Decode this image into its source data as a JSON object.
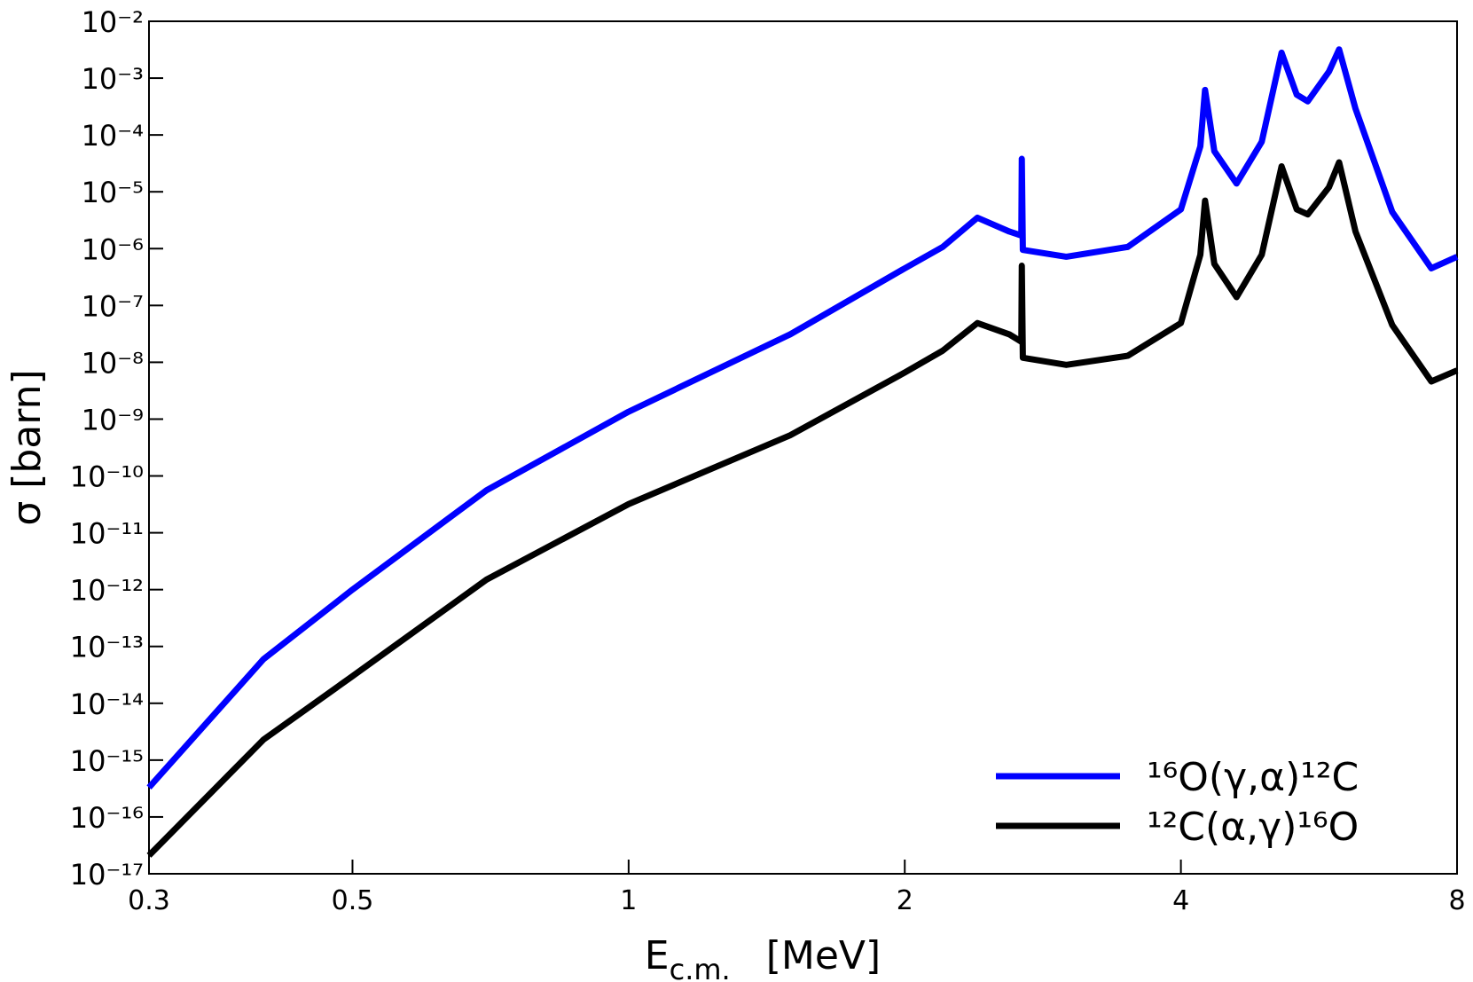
{
  "chart_data": {
    "type": "line",
    "xlabel": [
      "E",
      "c.m.",
      "[MeV]"
    ],
    "ylabel": "σ  [barn]",
    "xscale": "log",
    "yscale": "log",
    "xlim": [
      0.3,
      8
    ],
    "ylim": [
      1e-17,
      0.01
    ],
    "xticks": [
      0.3,
      0.5,
      1,
      2,
      4,
      8
    ],
    "yticks": [
      {
        "value": 1e-17,
        "label": "10⁻¹⁷"
      },
      {
        "value": 1e-16,
        "label": "10⁻¹⁶"
      },
      {
        "value": 1e-15,
        "label": "10⁻¹⁵"
      },
      {
        "value": 1e-14,
        "label": "10⁻¹⁴"
      },
      {
        "value": 1e-13,
        "label": "10⁻¹³"
      },
      {
        "value": 1e-12,
        "label": "10⁻¹²"
      },
      {
        "value": 1e-11,
        "label": "10⁻¹¹"
      },
      {
        "value": 1e-10,
        "label": "10⁻¹⁰"
      },
      {
        "value": 1e-09,
        "label": "10⁻⁹"
      },
      {
        "value": 1e-08,
        "label": "10⁻⁸"
      },
      {
        "value": 1e-07,
        "label": "10⁻⁷"
      },
      {
        "value": 1e-06,
        "label": "10⁻⁶"
      },
      {
        "value": 1e-05,
        "label": "10⁻⁵"
      },
      {
        "value": 0.0001,
        "label": "10⁻⁴"
      },
      {
        "value": 0.001,
        "label": "10⁻³"
      },
      {
        "value": 0.01,
        "label": "10⁻²"
      }
    ],
    "legend": "lower right",
    "x": [
      0.3,
      0.4,
      0.5,
      0.7,
      1.0,
      1.5,
      2.0,
      2.2,
      2.4,
      2.6,
      2.68,
      2.683,
      2.69,
      3.0,
      3.5,
      4.0,
      4.2,
      4.25,
      4.35,
      4.6,
      4.9,
      5.15,
      5.35,
      5.5,
      5.8,
      5.95,
      6.2,
      6.8,
      7.5,
      8.0
    ],
    "series": [
      {
        "name": "¹⁶O(γ,α)¹²C",
        "color": "#0000ff",
        "values": [
          3.3e-16,
          6e-14,
          1e-12,
          5.6e-11,
          1.35e-09,
          3.1e-08,
          4.5e-07,
          1.07e-06,
          3.5e-06,
          2e-06,
          1.7e-06,
          3.8e-05,
          9.5e-07,
          7.2e-07,
          1.07e-06,
          4.9e-06,
          6.3e-05,
          0.00062,
          5.2e-05,
          1.4e-05,
          7.6e-05,
          0.0028,
          0.00051,
          0.00039,
          0.0013,
          0.0032,
          0.00029,
          4.4e-06,
          4.5e-07,
          7.2e-07
        ]
      },
      {
        "name": "¹²C(α,γ)¹⁶O",
        "color": "#000000",
        "values": [
          2.1e-17,
          2.3e-15,
          3e-14,
          1.5e-12,
          3.2e-11,
          5.2e-10,
          6.6e-09,
          1.6e-08,
          4.9e-08,
          3.1e-08,
          2.3e-08,
          5e-07,
          1.2e-08,
          9e-09,
          1.3e-08,
          4.9e-08,
          7.8e-07,
          7e-06,
          5.4e-07,
          1.4e-07,
          7.8e-07,
          2.8e-05,
          4.9e-06,
          4e-06,
          1.2e-05,
          3.3e-05,
          2e-06,
          4.5e-08,
          4.6e-09,
          7.2e-09
        ]
      }
    ]
  }
}
